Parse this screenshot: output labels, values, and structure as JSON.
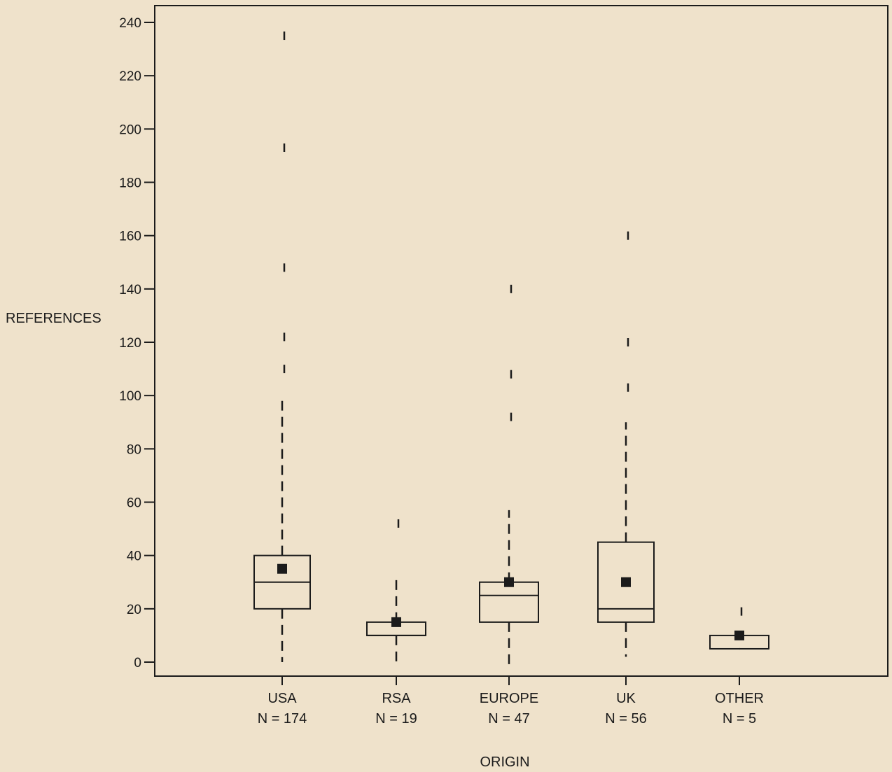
{
  "chart_data": {
    "type": "box",
    "title": "",
    "xlabel": "ORIGIN",
    "ylabel": "REFERENCES",
    "ylim": [
      -5,
      245
    ],
    "yticks": [
      0,
      20,
      40,
      60,
      80,
      100,
      120,
      140,
      160,
      180,
      200,
      220,
      240
    ],
    "grid": false,
    "legend": "none",
    "colors": {
      "background": "#efe2cb",
      "ink": "#1b1b1b"
    },
    "categories": [
      "USA",
      "RSA",
      "EUROPE",
      "UK",
      "OTHER"
    ],
    "counts": [
      "N = 174",
      "N = 19",
      "N = 47",
      "N = 56",
      "N = 5"
    ],
    "boxes": [
      {
        "category": "USA",
        "n": 174,
        "q1": 20,
        "median": 30,
        "q3": 40,
        "mean": 35,
        "whisker_low": 0,
        "whisker_high": 98,
        "outliers": [
          110,
          122,
          148,
          193,
          235
        ]
      },
      {
        "category": "RSA",
        "n": 19,
        "q1": 10,
        "median": 10,
        "q3": 15,
        "mean": 15,
        "whisker_low": 0,
        "whisker_high": 33,
        "outliers": [
          52
        ]
      },
      {
        "category": "EUROPE",
        "n": 47,
        "q1": 15,
        "median": 25,
        "q3": 30,
        "mean": 30,
        "whisker_low": -2,
        "whisker_high": 57,
        "outliers": [
          92,
          108,
          140
        ]
      },
      {
        "category": "UK",
        "n": 56,
        "q1": 15,
        "median": 20,
        "q3": 45,
        "mean": 30,
        "whisker_low": 2,
        "whisker_high": 90,
        "outliers": [
          103,
          120,
          160
        ]
      },
      {
        "category": "OTHER",
        "n": 5,
        "q1": 5,
        "median": 5,
        "q3": 10,
        "mean": 10,
        "whisker_low": 5,
        "whisker_high": 10,
        "outliers": [
          19
        ]
      }
    ]
  }
}
